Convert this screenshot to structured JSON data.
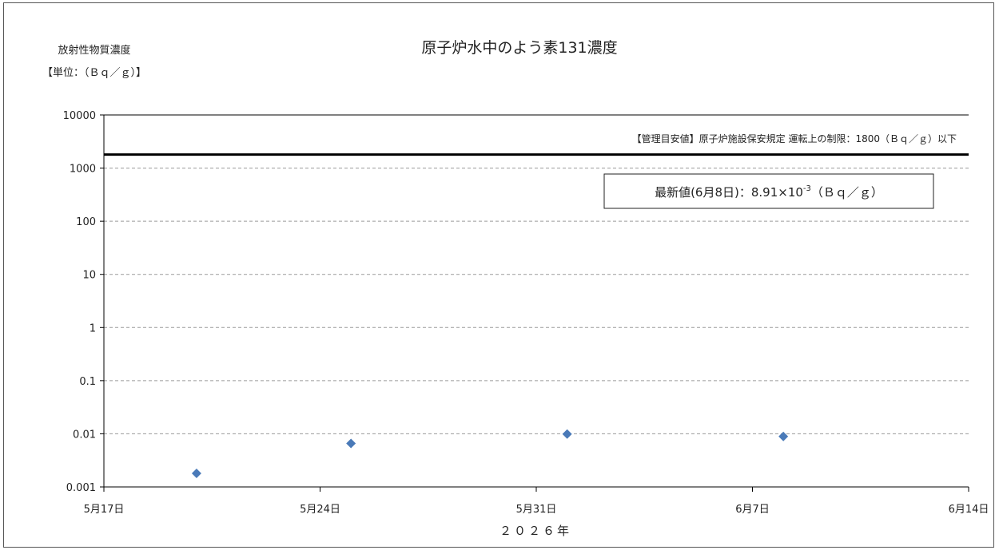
{
  "chart_data": {
    "type": "scatter",
    "title": "原子炉水中のよう素131濃度",
    "ylabel_line1": "放射性物質濃度",
    "ylabel_line2": "【単位：（Ｂｑ／ｇ）】",
    "xlabel": "２０２６年",
    "y_scale": "log",
    "ylim": [
      0.001,
      10000
    ],
    "y_ticks": [
      {
        "value": 10000,
        "label": "10000"
      },
      {
        "value": 1000,
        "label": "1000"
      },
      {
        "value": 100,
        "label": "100"
      },
      {
        "value": 10,
        "label": "10"
      },
      {
        "value": 1,
        "label": "1"
      },
      {
        "value": 0.1,
        "label": "0.1"
      },
      {
        "value": 0.01,
        "label": "0.01"
      },
      {
        "value": 0.001,
        "label": "0.001"
      }
    ],
    "xlim": [
      "2026-05-17",
      "2026-06-14"
    ],
    "x_ticks": [
      {
        "value": "2026-05-17",
        "label": "5月17日"
      },
      {
        "value": "2026-05-24",
        "label": "5月24日"
      },
      {
        "value": "2026-05-31",
        "label": "5月31日"
      },
      {
        "value": "2026-06-07",
        "label": "6月7日"
      },
      {
        "value": "2026-06-14",
        "label": "6月14日"
      }
    ],
    "grid": "horizontal dashed",
    "marker_color": "#4a7ab8",
    "limit_line": {
      "value": 1800,
      "label": "【管理目安値】原子炉施設保安規定 運転上の制限：1800（Ｂｑ／ｇ）以下",
      "color": "#000000"
    },
    "latest_box": {
      "prefix": "最新値(6月8日)：8.91×10",
      "exponent": "-3",
      "suffix": "（Ｂｑ／ｇ）"
    },
    "points": [
      {
        "x": "2026-05-20",
        "y": 0.0018
      },
      {
        "x": "2026-05-25",
        "y": 0.0066
      },
      {
        "x": "2026-06-01",
        "y": 0.0099
      },
      {
        "x": "2026-06-08",
        "y": 0.00891
      }
    ]
  }
}
